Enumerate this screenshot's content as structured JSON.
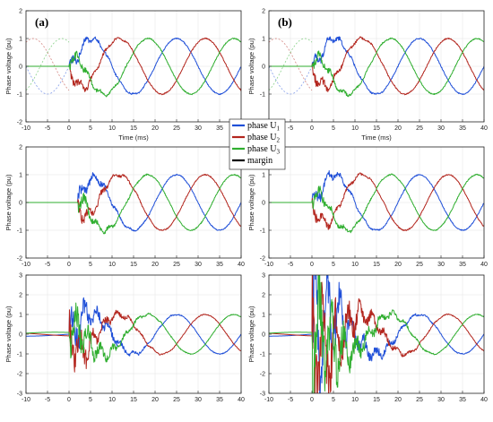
{
  "figure": {
    "panel_labels": [
      "(a)",
      "(b)"
    ]
  },
  "legend": {
    "entries": [
      {
        "label": "phase U1",
        "base": "phase U",
        "sub": "1",
        "color": "#1f4fd8"
      },
      {
        "label": "phase U2",
        "base": "phase U",
        "sub": "2",
        "color": "#b3261e"
      },
      {
        "label": "phase U3",
        "base": "phase U",
        "sub": "3",
        "color": "#2fae2f"
      },
      {
        "label": "margin",
        "base": "margin",
        "sub": "",
        "color": "#000000"
      }
    ]
  },
  "chart_data": [
    {
      "id": "a1",
      "type": "line",
      "panel_label": "(a)",
      "xlabel": "Time (ms)",
      "ylabel": "Phase voltage (pu)",
      "xlim": [
        -10,
        40
      ],
      "ylim": [
        -2,
        2
      ],
      "xticks": [
        -10,
        -5,
        0,
        5,
        10,
        15,
        20,
        25,
        30,
        35,
        40
      ],
      "yticks": [
        -2,
        -1,
        0,
        1,
        2
      ],
      "frequency_hz": 50,
      "amplitude_pu": 1,
      "fault_time_ms": 0,
      "pre_fault_dashed": true,
      "disturbance_noise_pu": 0.18,
      "series": [
        {
          "name": "phase U1",
          "color": "#1f4fd8",
          "phase_deg": 0
        },
        {
          "name": "phase U2",
          "color": "#b3261e",
          "phase_deg": -120
        },
        {
          "name": "phase U3",
          "color": "#2fae2f",
          "phase_deg": 120
        }
      ]
    },
    {
      "id": "b1",
      "type": "line",
      "panel_label": "(b)",
      "xlabel": "Time (ms)",
      "ylabel": "Phase voltage (pu)",
      "xlim": [
        -10,
        40
      ],
      "ylim": [
        -2,
        2
      ],
      "xticks": [
        -10,
        -5,
        0,
        5,
        10,
        15,
        20,
        25,
        30,
        35,
        40
      ],
      "yticks": [
        -2,
        -1,
        0,
        1,
        2
      ],
      "frequency_hz": 50,
      "amplitude_pu": 1,
      "fault_time_ms": 0,
      "pre_fault_dashed": true,
      "disturbance_noise_pu": 0.2,
      "series": [
        {
          "name": "phase U1",
          "color": "#1f4fd8",
          "phase_deg": 0
        },
        {
          "name": "phase U2",
          "color": "#b3261e",
          "phase_deg": -120
        },
        {
          "name": "phase U3",
          "color": "#2fae2f",
          "phase_deg": 120
        }
      ]
    },
    {
      "id": "a2",
      "type": "line",
      "xlabel": "",
      "ylabel": "Phase voltage (pu)",
      "xlim": [
        -10,
        40
      ],
      "ylim": [
        -2,
        2
      ],
      "xticks": [
        -10,
        -5,
        0,
        5,
        10,
        15,
        20,
        25,
        30,
        35,
        40
      ],
      "yticks": [
        -2,
        -1,
        0,
        1,
        2
      ],
      "frequency_hz": 50,
      "amplitude_pu": 1,
      "fault_time_ms": 2,
      "pre_fault_dashed": false,
      "disturbance_noise_pu": 0.22,
      "series": [
        {
          "name": "phase U1",
          "color": "#1f4fd8",
          "phase_deg": 0
        },
        {
          "name": "phase U2",
          "color": "#b3261e",
          "phase_deg": -120
        },
        {
          "name": "phase U3",
          "color": "#2fae2f",
          "phase_deg": 120
        }
      ]
    },
    {
      "id": "b2",
      "type": "line",
      "xlabel": "",
      "ylabel": "Phase voltage (pu)",
      "xlim": [
        -10,
        40
      ],
      "ylim": [
        -2,
        2
      ],
      "xticks": [
        -10,
        -5,
        0,
        5,
        10,
        15,
        20,
        25,
        30,
        35,
        40
      ],
      "yticks": [
        -2,
        -1,
        0,
        1,
        2
      ],
      "frequency_hz": 50,
      "amplitude_pu": 1,
      "fault_time_ms": 0,
      "pre_fault_dashed": false,
      "disturbance_noise_pu": 0.22,
      "series": [
        {
          "name": "phase U1",
          "color": "#1f4fd8",
          "phase_deg": 0
        },
        {
          "name": "phase U2",
          "color": "#b3261e",
          "phase_deg": -120
        },
        {
          "name": "phase U3",
          "color": "#2fae2f",
          "phase_deg": 120
        }
      ]
    },
    {
      "id": "a3",
      "type": "line",
      "xlabel": "",
      "ylabel": "Phase voltage (pu)",
      "xlim": [
        -10,
        40
      ],
      "ylim": [
        -3,
        3
      ],
      "xticks": [
        -10,
        -5,
        0,
        5,
        10,
        15,
        20,
        25,
        30,
        35,
        40
      ],
      "yticks": [
        -3,
        -2,
        -1,
        0,
        1,
        2,
        3
      ],
      "frequency_hz": 50,
      "amplitude_pu": 1,
      "fault_time_ms": 0,
      "pre_fault_dashed": false,
      "disturbance_noise_pu": 0.9,
      "series": [
        {
          "name": "phase U1",
          "color": "#1f4fd8",
          "phase_deg": 0
        },
        {
          "name": "phase U2",
          "color": "#b3261e",
          "phase_deg": -120
        },
        {
          "name": "phase U3",
          "color": "#2fae2f",
          "phase_deg": 120
        }
      ]
    },
    {
      "id": "b3",
      "type": "line",
      "xlabel": "",
      "ylabel": "Phase voltage (pu)",
      "xlim": [
        -10,
        40
      ],
      "ylim": [
        -3,
        3
      ],
      "xticks": [
        -10,
        -5,
        0,
        5,
        10,
        15,
        20,
        25,
        30,
        35,
        40
      ],
      "yticks": [
        -3,
        -2,
        -1,
        0,
        1,
        2,
        3
      ],
      "frequency_hz": 50,
      "amplitude_pu": 1,
      "fault_time_ms": 0,
      "pre_fault_dashed": false,
      "disturbance_noise_pu": 2.6,
      "series": [
        {
          "name": "phase U1",
          "color": "#1f4fd8",
          "phase_deg": 0
        },
        {
          "name": "phase U2",
          "color": "#b3261e",
          "phase_deg": -120
        },
        {
          "name": "phase U3",
          "color": "#2fae2f",
          "phase_deg": 120
        }
      ]
    }
  ]
}
